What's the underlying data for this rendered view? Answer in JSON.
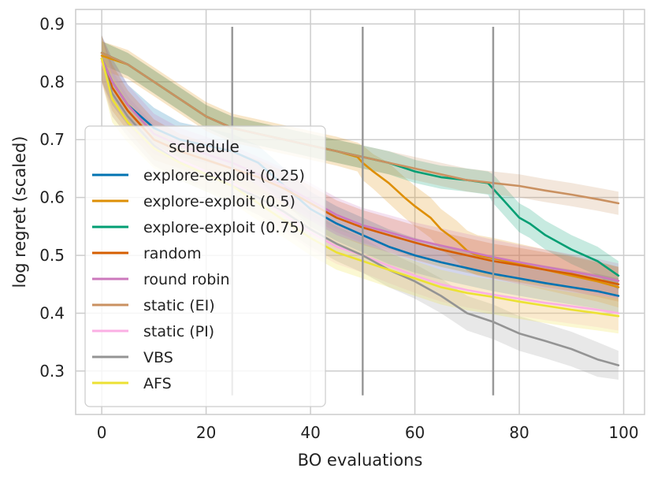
{
  "chart_data": {
    "type": "line",
    "xlabel": "BO evaluations",
    "ylabel": "log regret (scaled)",
    "xlim": [
      -5,
      104
    ],
    "ylim": [
      0.225,
      0.925
    ],
    "xticks": [
      0,
      20,
      40,
      60,
      80,
      100
    ],
    "yticks": [
      0.3,
      0.4,
      0.5,
      0.6,
      0.7,
      0.8,
      0.9
    ],
    "xtick_labels": [
      "0",
      "20",
      "40",
      "60",
      "80",
      "100"
    ],
    "ytick_labels": [
      "0.3",
      "0.4",
      "0.5",
      "0.6",
      "0.7",
      "0.8",
      "0.9"
    ],
    "grid": true,
    "legend": {
      "title": "schedule",
      "position": "lower-left"
    },
    "switch_lines": [
      {
        "x": 25,
        "ymin": 0.258,
        "ymax": 0.895
      },
      {
        "x": 50,
        "ymin": 0.258,
        "ymax": 0.895
      },
      {
        "x": 75,
        "ymin": 0.258,
        "ymax": 0.895
      }
    ],
    "series": [
      {
        "name": "explore-exploit (0.25)",
        "color": "#0173b2",
        "x": [
          0,
          2,
          5,
          10,
          15,
          20,
          25,
          30,
          35,
          40,
          45,
          50,
          55,
          60,
          65,
          70,
          75,
          80,
          85,
          90,
          95,
          99
        ],
        "y": [
          0.84,
          0.8,
          0.76,
          0.72,
          0.7,
          0.69,
          0.68,
          0.66,
          0.62,
          0.58,
          0.555,
          0.535,
          0.515,
          0.5,
          0.488,
          0.478,
          0.468,
          0.46,
          0.452,
          0.445,
          0.438,
          0.43
        ],
        "band": [
          0.04,
          0.04,
          0.035,
          0.035,
          0.03,
          0.03,
          0.03,
          0.03,
          0.03,
          0.03,
          0.03,
          0.03,
          0.03,
          0.03,
          0.03,
          0.03,
          0.03,
          0.03,
          0.03,
          0.03,
          0.03,
          0.03
        ]
      },
      {
        "name": "explore-exploit (0.5)",
        "color": "#de8f05",
        "x": [
          0,
          5,
          10,
          15,
          20,
          25,
          30,
          35,
          40,
          45,
          49,
          50,
          52,
          55,
          58,
          60,
          63,
          65,
          68,
          70,
          72,
          75,
          80,
          85,
          90,
          95,
          99
        ],
        "y": [
          0.845,
          0.83,
          0.8,
          0.77,
          0.74,
          0.72,
          0.71,
          0.7,
          0.69,
          0.68,
          0.67,
          0.66,
          0.645,
          0.625,
          0.6,
          0.585,
          0.565,
          0.545,
          0.525,
          0.508,
          0.5,
          0.495,
          0.485,
          0.475,
          0.465,
          0.455,
          0.445
        ],
        "band": [
          0.025,
          0.025,
          0.025,
          0.025,
          0.025,
          0.025,
          0.025,
          0.025,
          0.025,
          0.025,
          0.025,
          0.03,
          0.03,
          0.035,
          0.035,
          0.035,
          0.035,
          0.035,
          0.035,
          0.035,
          0.035,
          0.035,
          0.035,
          0.035,
          0.035,
          0.035,
          0.035
        ]
      },
      {
        "name": "explore-exploit (0.75)",
        "color": "#029e73",
        "x": [
          0,
          5,
          10,
          15,
          20,
          25,
          30,
          35,
          40,
          45,
          50,
          55,
          60,
          65,
          70,
          74,
          75,
          77,
          80,
          82,
          85,
          88,
          90,
          95,
          99
        ],
        "y": [
          0.85,
          0.83,
          0.8,
          0.77,
          0.74,
          0.72,
          0.71,
          0.7,
          0.69,
          0.68,
          0.67,
          0.66,
          0.645,
          0.635,
          0.63,
          0.625,
          0.615,
          0.595,
          0.565,
          0.555,
          0.535,
          0.52,
          0.51,
          0.49,
          0.465
        ],
        "band": [
          0.02,
          0.02,
          0.02,
          0.02,
          0.02,
          0.02,
          0.02,
          0.02,
          0.02,
          0.02,
          0.02,
          0.02,
          0.02,
          0.02,
          0.02,
          0.02,
          0.025,
          0.025,
          0.025,
          0.025,
          0.025,
          0.025,
          0.025,
          0.025,
          0.025
        ]
      },
      {
        "name": "random",
        "color": "#d55e00",
        "x": [
          0,
          2,
          5,
          10,
          15,
          20,
          25,
          30,
          35,
          40,
          45,
          50,
          55,
          60,
          65,
          70,
          75,
          80,
          85,
          90,
          95,
          99
        ],
        "y": [
          0.84,
          0.79,
          0.75,
          0.7,
          0.68,
          0.665,
          0.65,
          0.635,
          0.615,
          0.59,
          0.565,
          0.548,
          0.535,
          0.522,
          0.51,
          0.5,
          0.49,
          0.483,
          0.475,
          0.468,
          0.458,
          0.45
        ],
        "band": [
          0.04,
          0.04,
          0.035,
          0.035,
          0.03,
          0.03,
          0.03,
          0.03,
          0.03,
          0.03,
          0.03,
          0.03,
          0.03,
          0.03,
          0.03,
          0.03,
          0.03,
          0.03,
          0.03,
          0.03,
          0.03,
          0.03
        ]
      },
      {
        "name": "round robin",
        "color": "#cc78bc",
        "x": [
          0,
          2,
          5,
          10,
          15,
          20,
          25,
          30,
          35,
          40,
          45,
          50,
          55,
          60,
          65,
          70,
          75,
          80,
          85,
          90,
          95,
          99
        ],
        "y": [
          0.84,
          0.8,
          0.76,
          0.71,
          0.69,
          0.675,
          0.66,
          0.64,
          0.62,
          0.595,
          0.57,
          0.552,
          0.54,
          0.527,
          0.517,
          0.507,
          0.497,
          0.488,
          0.48,
          0.472,
          0.464,
          0.456
        ],
        "band": [
          0.04,
          0.04,
          0.035,
          0.035,
          0.03,
          0.03,
          0.03,
          0.03,
          0.03,
          0.03,
          0.03,
          0.03,
          0.03,
          0.03,
          0.03,
          0.03,
          0.03,
          0.03,
          0.03,
          0.03,
          0.03,
          0.03
        ]
      },
      {
        "name": "static (EI)",
        "color": "#ca9161",
        "x": [
          0,
          5,
          10,
          15,
          20,
          25,
          30,
          35,
          40,
          45,
          50,
          55,
          60,
          65,
          70,
          75,
          80,
          85,
          90,
          95,
          99
        ],
        "y": [
          0.85,
          0.83,
          0.8,
          0.77,
          0.74,
          0.72,
          0.71,
          0.7,
          0.69,
          0.68,
          0.67,
          0.66,
          0.65,
          0.64,
          0.63,
          0.625,
          0.62,
          0.612,
          0.605,
          0.597,
          0.59
        ],
        "band": [
          0.02,
          0.02,
          0.02,
          0.02,
          0.02,
          0.02,
          0.02,
          0.02,
          0.02,
          0.02,
          0.02,
          0.02,
          0.02,
          0.02,
          0.02,
          0.02,
          0.02,
          0.02,
          0.02,
          0.02,
          0.02
        ]
      },
      {
        "name": "static (PI)",
        "color": "#fbafe4",
        "x": [
          0,
          2,
          5,
          10,
          15,
          20,
          25,
          30,
          35,
          40,
          45,
          50,
          55,
          60,
          65,
          70,
          75,
          80,
          85,
          90,
          95,
          99
        ],
        "y": [
          0.835,
          0.78,
          0.74,
          0.69,
          0.665,
          0.645,
          0.625,
          0.6,
          0.57,
          0.54,
          0.515,
          0.5,
          0.482,
          0.465,
          0.45,
          0.44,
          0.432,
          0.425,
          0.418,
          0.412,
          0.406,
          0.4
        ],
        "band": [
          0.04,
          0.04,
          0.035,
          0.035,
          0.03,
          0.03,
          0.03,
          0.03,
          0.03,
          0.03,
          0.03,
          0.03,
          0.03,
          0.03,
          0.03,
          0.03,
          0.03,
          0.03,
          0.03,
          0.03,
          0.03,
          0.03
        ]
      },
      {
        "name": "VBS",
        "color": "#949494",
        "x": [
          0,
          2,
          5,
          10,
          15,
          20,
          25,
          30,
          35,
          40,
          45,
          50,
          55,
          60,
          65,
          70,
          75,
          80,
          85,
          90,
          95,
          99
        ],
        "y": [
          0.84,
          0.78,
          0.74,
          0.69,
          0.66,
          0.64,
          0.62,
          0.6,
          0.575,
          0.545,
          0.52,
          0.5,
          0.475,
          0.455,
          0.43,
          0.4,
          0.385,
          0.365,
          0.352,
          0.338,
          0.32,
          0.31
        ],
        "band": [
          0.04,
          0.04,
          0.035,
          0.035,
          0.03,
          0.03,
          0.03,
          0.03,
          0.03,
          0.03,
          0.03,
          0.03,
          0.03,
          0.03,
          0.03,
          0.03,
          0.03,
          0.03,
          0.03,
          0.03,
          0.03,
          0.025
        ]
      },
      {
        "name": "AFS",
        "color": "#ece133",
        "x": [
          0,
          2,
          5,
          10,
          15,
          20,
          25,
          30,
          35,
          40,
          45,
          50,
          55,
          60,
          65,
          70,
          75,
          80,
          85,
          90,
          95,
          99
        ],
        "y": [
          0.84,
          0.77,
          0.73,
          0.685,
          0.66,
          0.64,
          0.62,
          0.59,
          0.56,
          0.53,
          0.505,
          0.49,
          0.475,
          0.46,
          0.445,
          0.435,
          0.428,
          0.42,
          0.413,
          0.406,
          0.4,
          0.395
        ],
        "band": [
          0.04,
          0.04,
          0.035,
          0.035,
          0.03,
          0.03,
          0.03,
          0.03,
          0.03,
          0.03,
          0.03,
          0.03,
          0.03,
          0.03,
          0.03,
          0.03,
          0.03,
          0.03,
          0.03,
          0.03,
          0.03,
          0.03
        ]
      }
    ]
  }
}
